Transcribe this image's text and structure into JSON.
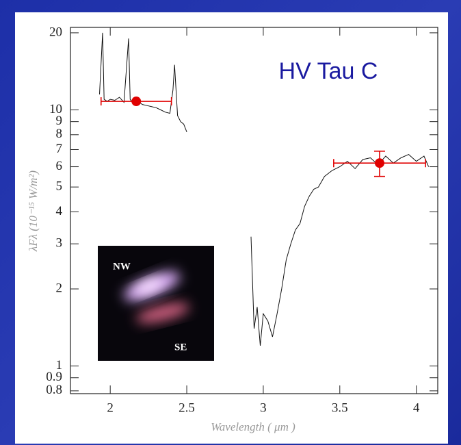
{
  "chart_data": {
    "type": "line",
    "annotation": "HV Tau C",
    "xlabel": "Wavelength ( μm )",
    "ylabel": "λFλ (10⁻¹⁵ W/m²)",
    "xlim": [
      1.74,
      4.14
    ],
    "xticks": [
      2,
      2.5,
      3,
      3.5,
      4
    ],
    "ylim": [
      0.78,
      21
    ],
    "ylog": true,
    "yticks": [
      0.8,
      0.9,
      1,
      2,
      3,
      4,
      5,
      6,
      7,
      8,
      9,
      10,
      20
    ],
    "series": [
      {
        "color": "#111111",
        "x": [
          1.93,
          1.95,
          1.96,
          1.98,
          2.0,
          2.03,
          2.06,
          2.09,
          2.12,
          2.13,
          2.15,
          2.18,
          2.21,
          2.24,
          2.27,
          2.3,
          2.33,
          2.36,
          2.39,
          2.41,
          2.42,
          2.44,
          2.46,
          2.48,
          2.5,
          2.9,
          2.92,
          2.94,
          2.96,
          2.98,
          3.0,
          3.03,
          3.06,
          3.09,
          3.12,
          3.15,
          3.18,
          3.21,
          3.24,
          3.27,
          3.3,
          3.33,
          3.36,
          3.4,
          3.45,
          3.5,
          3.55,
          3.6,
          3.65,
          3.7,
          3.75,
          3.8,
          3.85,
          3.9,
          3.95,
          4.0,
          4.05,
          4.08
        ],
        "values": [
          11.5,
          20,
          11,
          10.8,
          11,
          10.9,
          11.2,
          10.7,
          19,
          11,
          10.6,
          10.8,
          10.5,
          10.4,
          10.3,
          10.2,
          10,
          9.8,
          9.7,
          12,
          15,
          9.5,
          9,
          8.8,
          8.2,
          null,
          3.2,
          1.4,
          1.7,
          1.2,
          1.6,
          1.5,
          1.3,
          1.6,
          2.0,
          2.6,
          3.0,
          3.4,
          3.6,
          4.2,
          4.6,
          4.9,
          5.0,
          5.5,
          5.8,
          6.0,
          6.3,
          5.9,
          6.4,
          6.5,
          6.1,
          6.6,
          6.2,
          6.5,
          6.7,
          6.3,
          6.6,
          6.0
        ]
      }
    ],
    "points": [
      {
        "x": 2.17,
        "xerr": 0.23,
        "y": 10.8,
        "color": "#e00000"
      },
      {
        "x": 3.76,
        "xerr": 0.3,
        "y": 6.2,
        "yerr": 0.7,
        "color": "#e00000"
      }
    ],
    "inset_labels": [
      "NW",
      "SE"
    ]
  }
}
